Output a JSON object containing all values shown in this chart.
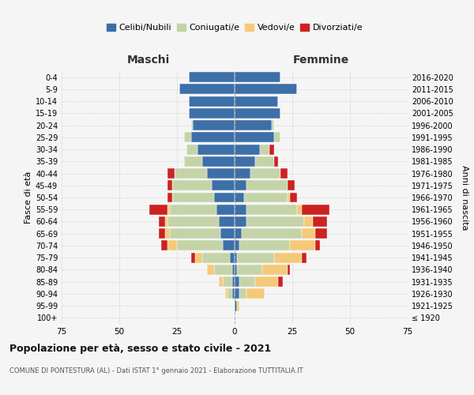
{
  "age_groups": [
    "100+",
    "95-99",
    "90-94",
    "85-89",
    "80-84",
    "75-79",
    "70-74",
    "65-69",
    "60-64",
    "55-59",
    "50-54",
    "45-49",
    "40-44",
    "35-39",
    "30-34",
    "25-29",
    "20-24",
    "15-19",
    "10-14",
    "5-9",
    "0-4"
  ],
  "birth_years": [
    "≤ 1920",
    "1921-1925",
    "1926-1930",
    "1931-1935",
    "1936-1940",
    "1941-1945",
    "1946-1950",
    "1951-1955",
    "1956-1960",
    "1961-1965",
    "1966-1970",
    "1971-1975",
    "1976-1980",
    "1981-1985",
    "1986-1990",
    "1991-1995",
    "1996-2000",
    "2001-2005",
    "2006-2010",
    "2011-2015",
    "2016-2020"
  ],
  "colors": {
    "celibi": "#3d6fa8",
    "coniugati": "#c5d4a8",
    "vedovi": "#f5c97a",
    "divorziati": "#cc2222"
  },
  "maschi": {
    "celibi": [
      0,
      0,
      1,
      1,
      1,
      2,
      5,
      6,
      7,
      8,
      9,
      10,
      12,
      14,
      16,
      19,
      18,
      20,
      20,
      24,
      20
    ],
    "coniugati": [
      0,
      0,
      2,
      4,
      8,
      12,
      20,
      22,
      22,
      20,
      18,
      17,
      14,
      8,
      5,
      3,
      1,
      0,
      0,
      0,
      0
    ],
    "vedovi": [
      0,
      0,
      1,
      2,
      3,
      3,
      4,
      2,
      1,
      1,
      0,
      0,
      0,
      0,
      0,
      0,
      0,
      0,
      0,
      0,
      0
    ],
    "divorziati": [
      0,
      0,
      0,
      0,
      0,
      2,
      3,
      3,
      3,
      8,
      2,
      2,
      3,
      0,
      0,
      0,
      0,
      0,
      0,
      0,
      0
    ]
  },
  "femmine": {
    "celibi": [
      0,
      1,
      2,
      2,
      1,
      1,
      2,
      3,
      5,
      5,
      4,
      5,
      7,
      9,
      11,
      17,
      16,
      20,
      19,
      27,
      20
    ],
    "coniugati": [
      0,
      0,
      3,
      7,
      11,
      16,
      22,
      26,
      25,
      22,
      19,
      18,
      13,
      8,
      4,
      3,
      1,
      0,
      0,
      0,
      0
    ],
    "vedovi": [
      0,
      1,
      8,
      10,
      11,
      12,
      11,
      6,
      4,
      2,
      1,
      0,
      0,
      0,
      0,
      0,
      0,
      0,
      0,
      0,
      0
    ],
    "divorziati": [
      0,
      0,
      0,
      2,
      1,
      2,
      2,
      5,
      6,
      12,
      3,
      3,
      3,
      2,
      2,
      0,
      0,
      0,
      0,
      0,
      0
    ]
  },
  "xlim": 75,
  "title": "Popolazione per età, sesso e stato civile - 2021",
  "subtitle": "COMUNE DI PONTESTURA (AL) - Dati ISTAT 1° gennaio 2021 - Elaborazione TUTTITALIA.IT",
  "xlabel_left": "Maschi",
  "xlabel_right": "Femmine",
  "ylabel": "Fasce di età",
  "ylabel_right": "Anni di nascita",
  "legend_labels": [
    "Celibi/Nubili",
    "Coniugati/e",
    "Vedovi/e",
    "Divorziati/e"
  ],
  "bg_color": "#f5f5f5"
}
